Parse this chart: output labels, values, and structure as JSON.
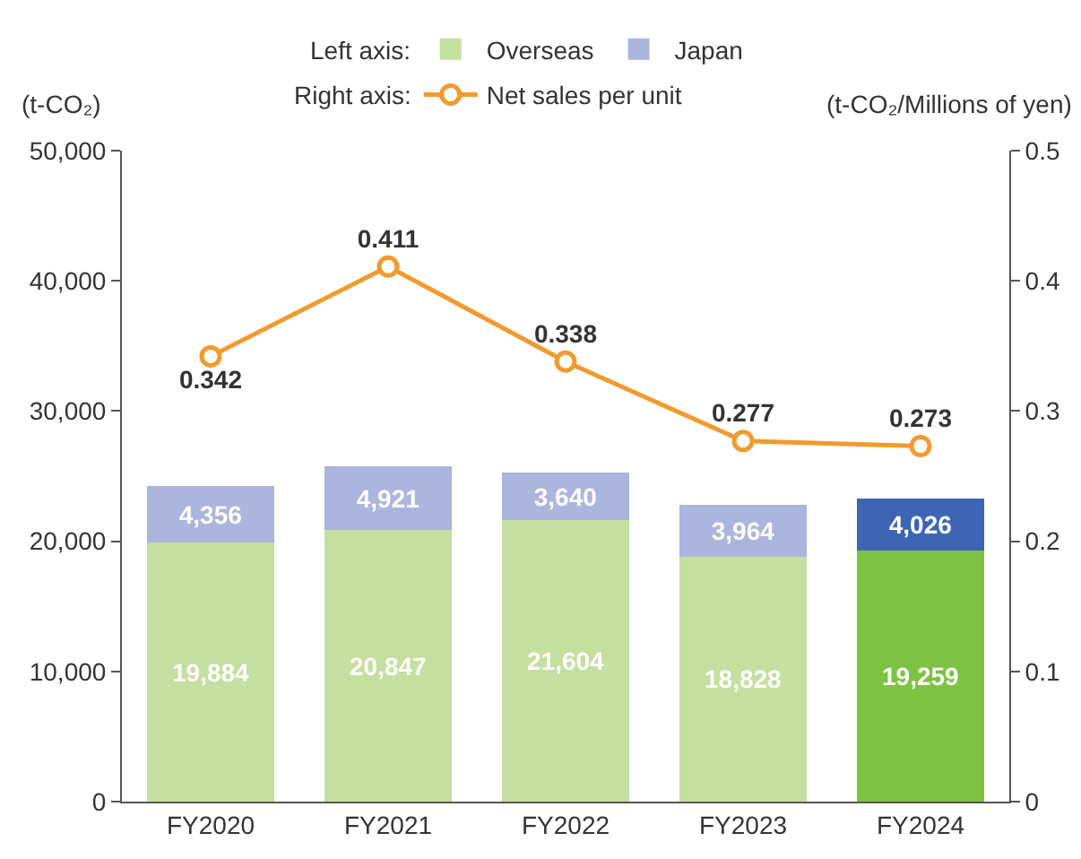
{
  "chart_data": {
    "type": "bar",
    "stacked": true,
    "ylabel": "(t-CO₂)",
    "y2label": "(t-CO₂/Millions of yen)",
    "categories": [
      "FY2020",
      "FY2021",
      "FY2022",
      "FY2023",
      "FY2024"
    ],
    "series": [
      {
        "name": "Overseas",
        "color": "#7dc242",
        "colors": [
          "#c4df9f",
          "#c4df9f",
          "#c4df9f",
          "#c4df9f",
          "#7dc242"
        ],
        "values": [
          19884,
          20847,
          21604,
          18828,
          19259
        ],
        "value_labels": [
          "19,884",
          "20,847",
          "21,604",
          "18,828",
          "19,259"
        ]
      },
      {
        "name": "Japan",
        "color": "#3d65b3",
        "colors": [
          "#abb5dd",
          "#abb5dd",
          "#abb5dd",
          "#abb5dd",
          "#3d65b3"
        ],
        "values": [
          4356,
          4921,
          3640,
          3964,
          4026
        ],
        "value_labels": [
          "4,356",
          "4,921",
          "3,640",
          "3,964",
          "4,026"
        ]
      },
      {
        "name": "Net sales per unit",
        "type": "line",
        "axis": "y2",
        "color": "#f39a2e",
        "marker": "circle",
        "values": [
          0.342,
          0.411,
          0.338,
          0.277,
          0.273
        ]
      }
    ],
    "annotations": [
      "Left axis:",
      "Right axis:"
    ],
    "data_labels": true,
    "legend": "top",
    "ylim": [
      0,
      50000
    ],
    "yticks": [
      {
        "value": 0,
        "label": "0"
      },
      {
        "value": 10000,
        "label": "10,000"
      },
      {
        "value": 20000,
        "label": "20,000"
      },
      {
        "value": 30000,
        "label": "30,000"
      },
      {
        "value": 40000,
        "label": "40,000"
      },
      {
        "value": 50000,
        "label": "50,000"
      }
    ],
    "y2lim": [
      0,
      0.5
    ],
    "y2ticks": [
      0,
      0.1,
      0.2,
      0.3,
      0.4,
      0.5
    ]
  }
}
